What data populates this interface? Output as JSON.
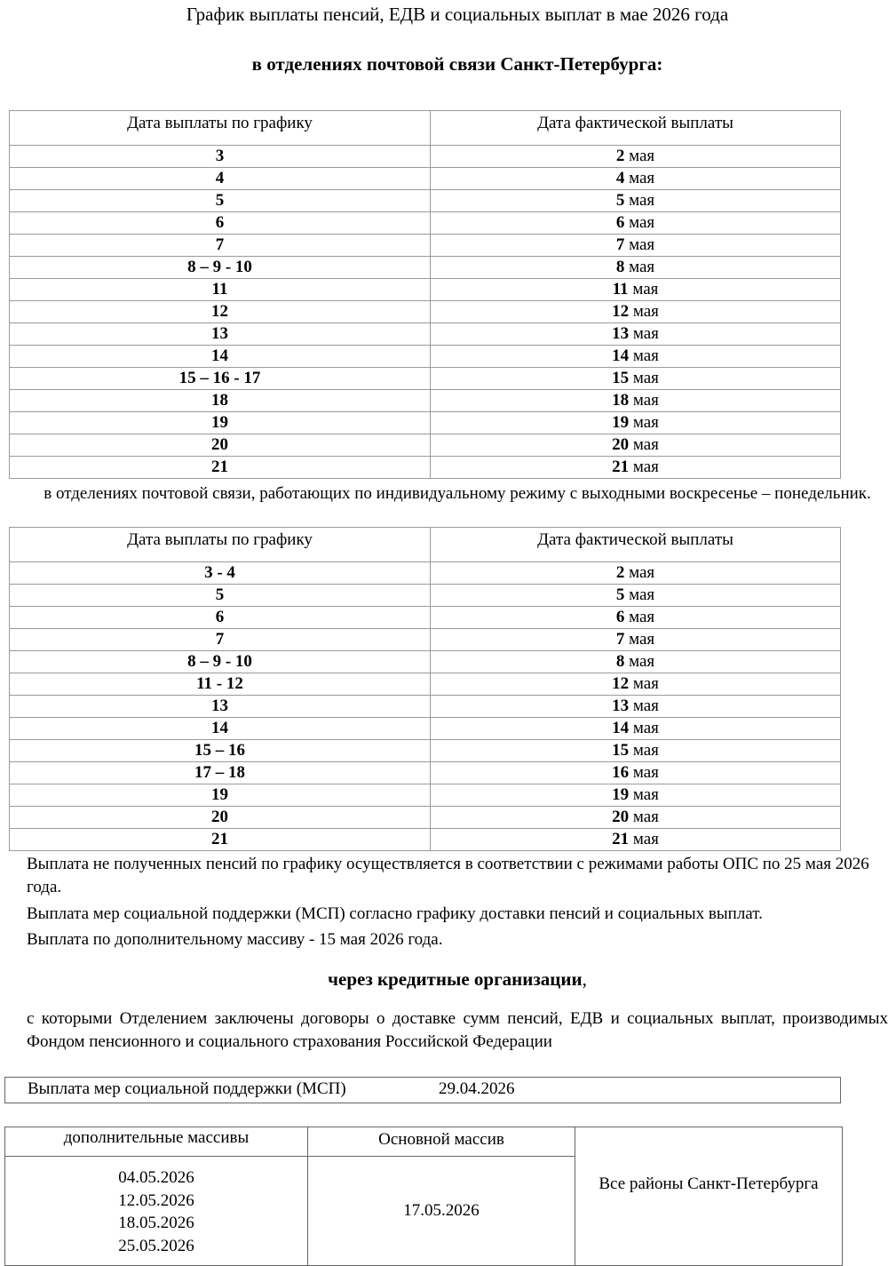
{
  "title": "График выплаты пенсий, ЕДВ и социальных выплат в мае 2026 года",
  "subtitle": "в отделениях почтовой связи Санкт-Петербурга:",
  "table1": {
    "headers": [
      "Дата выплаты по графику",
      "Дата фактической выплаты"
    ],
    "month_word": "мая",
    "rows": [
      [
        "3",
        "2"
      ],
      [
        "4",
        "4"
      ],
      [
        "5",
        "5"
      ],
      [
        "6",
        "6"
      ],
      [
        "7",
        "7"
      ],
      [
        "8 – 9 - 10",
        "8"
      ],
      [
        "11",
        "11"
      ],
      [
        "12",
        "12"
      ],
      [
        "13",
        "13"
      ],
      [
        "14",
        "14"
      ],
      [
        "15 – 16 - 17",
        "15"
      ],
      [
        "18",
        "18"
      ],
      [
        "19",
        "19"
      ],
      [
        "20",
        "20"
      ],
      [
        "21",
        "21"
      ]
    ]
  },
  "individual_note": "в отделениях почтовой связи, работающих по индивидуальному режиму с выходными воскресенье – понедельник.",
  "table2": {
    "headers": [
      "Дата выплаты по графику",
      "Дата фактической выплаты"
    ],
    "month_word": "мая",
    "rows": [
      [
        "3 - 4",
        "2"
      ],
      [
        "5",
        "5"
      ],
      [
        "6",
        "6"
      ],
      [
        "7",
        "7"
      ],
      [
        "8 – 9 - 10",
        "8"
      ],
      [
        "11 - 12",
        "12"
      ],
      [
        "13",
        "13"
      ],
      [
        "14",
        "14"
      ],
      [
        "15 – 16",
        "15"
      ],
      [
        "17 – 18",
        "16"
      ],
      [
        "19",
        "19"
      ],
      [
        "20",
        "20"
      ],
      [
        "21",
        "21"
      ]
    ]
  },
  "notes": [
    "Выплата не полученных пенсий по графику осуществляется в соответствии с режимами работы ОПС по 25 мая 2026 года.",
    "Выплата мер социальной поддержки (МСП) согласно графику доставки пенсий и социальных выплат.",
    "Выплата по дополнительному массиву - 15 мая 2026 года."
  ],
  "credit_heading": "через кредитные организации",
  "credit_heading_suffix": ",",
  "credit_paragraph": "с которыми Отделением заключены договоры о доставке сумм пенсий, ЕДВ  и социальных выплат, производимых Фондом пенсионного и социального страхования Российской Федерации",
  "msp_box": {
    "label": "Выплата мер социальной поддержки (МСП)",
    "date": "29.04.2026"
  },
  "bank_table": {
    "headers": [
      "дополнительные массивы",
      "Основной массив"
    ],
    "additional_dates": [
      "04.05.2026",
      "12.05.2026",
      "18.05.2026",
      "25.05.2026"
    ],
    "main_date": "17.05.2026",
    "region": "Все районы Санкт-Петербурга"
  }
}
